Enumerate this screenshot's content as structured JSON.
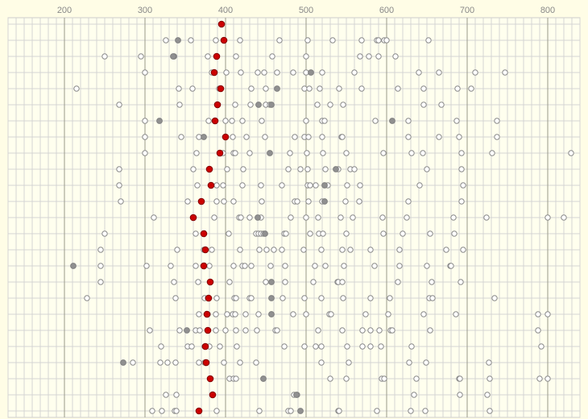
{
  "chart_data": {
    "type": "dotplot",
    "xlim": [
      130,
      840
    ],
    "xticks": [
      200,
      300,
      400,
      500,
      600,
      700,
      800
    ],
    "grid": true,
    "categories": [
      null,
      null,
      null,
      null,
      null,
      null,
      null,
      null,
      null,
      null,
      null,
      null,
      null,
      null,
      null,
      null,
      null,
      null,
      null,
      null,
      null,
      null,
      null,
      null,
      null
    ],
    "series": [
      {
        "color": "#cc0000",
        "values": [
          395,
          398,
          389,
          386,
          394,
          390,
          387,
          400,
          393,
          380,
          382,
          370,
          360,
          373,
          375,
          373,
          381,
          379,
          377,
          378,
          375,
          376,
          381,
          384,
          367
        ]
      },
      {
        "color": "#ffffff",
        "values": [
          [],
          [
            326,
            357,
            388,
            418,
            467,
            502,
            533,
            569,
            588,
            590,
            597,
            600,
            652
          ],
          [
            250,
            295,
            378,
            413,
            458,
            500,
            567,
            578,
            590,
            611
          ],
          [
            300,
            383,
            401,
            419,
            440,
            448,
            464,
            484,
            500,
            520,
            560,
            640,
            665,
            710,
            747
          ],
          [
            215,
            342,
            359,
            392,
            432,
            450,
            498,
            504,
            517,
            541,
            569,
            614,
            646,
            688,
            705
          ],
          [
            268,
            343,
            390,
            412,
            431,
            450,
            455,
            514,
            530,
            546,
            646,
            668
          ],
          [
            300,
            379,
            400,
            408,
            421,
            445,
            500,
            520,
            523,
            586,
            627,
            687,
            737
          ],
          [
            300,
            345,
            367,
            409,
            426,
            449,
            486,
            498,
            503,
            520,
            544,
            545,
            627,
            665,
            690,
            737
          ],
          [
            300,
            364,
            397,
            410,
            412,
            430,
            480,
            501,
            521,
            550,
            596,
            631,
            645,
            693,
            731,
            829
          ],
          [
            268,
            360,
            380,
            402,
            422,
            478,
            493,
            502,
            524,
            540,
            555,
            560,
            650,
            693
          ],
          [
            268,
            365,
            389,
            397,
            421,
            444,
            470,
            502,
            505,
            512,
            527,
            551,
            567,
            641,
            695
          ],
          [
            270,
            353,
            389,
            398,
            410,
            445,
            486,
            489,
            503,
            520,
            549,
            566,
            627,
            693
          ],
          [
            311,
            386,
            417,
            419,
            430,
            444,
            481,
            500,
            515,
            543,
            558,
            595,
            625,
            683,
            724,
            800,
            820
          ],
          [
            250,
            363,
            404,
            438,
            441,
            444,
            447,
            473,
            475,
            505,
            516,
            521,
            550,
            596,
            620,
            654,
            684
          ],
          [
            245,
            340,
            373,
            383,
            418,
            442,
            451,
            460,
            470,
            497,
            519,
            545,
            555,
            580,
            616,
            674,
            695
          ],
          [
            245,
            302,
            332,
            363,
            380,
            410,
            421,
            424,
            432,
            456,
            474,
            511,
            524,
            547,
            585,
            616,
            650,
            679,
            680
          ],
          [
            245,
            336,
            366,
            405,
            450,
            474,
            509,
            539,
            540,
            545,
            614,
            656,
            692
          ],
          [
            228,
            338,
            374,
            378,
            389,
            411,
            413,
            430,
            432,
            471,
            498,
            519,
            546,
            580,
            604,
            653,
            657,
            734
          ],
          [
            367,
            378,
            388,
            402,
            409,
            412,
            425,
            441,
            457,
            484,
            500,
            529,
            531,
            574,
            602,
            646,
            686,
            788,
            800
          ],
          [
            306,
            343,
            363,
            368,
            388,
            400,
            413,
            425,
            439,
            462,
            464,
            515,
            545,
            570,
            580,
            591,
            605,
            607,
            654,
            788
          ],
          [
            320,
            353,
            358,
            374,
            380,
            393,
            414,
            473,
            498,
            512,
            519,
            551,
            570,
            580,
            593,
            631,
            792
          ],
          [
            285,
            319,
            328,
            338,
            367,
            374,
            398,
            418,
            438,
            519,
            553,
            628,
            649,
            727
          ],
          [
            405,
            410,
            413,
            447,
            530,
            550,
            594,
            597,
            637,
            690,
            691,
            728,
            790,
            800
          ],
          [
            326,
            339,
            485,
            489,
            634,
            691,
            725
          ],
          [
            309,
            321,
            337,
            339,
            389,
            442,
            478,
            481,
            540,
            541,
            588,
            630,
            648,
            728
          ]
        ]
      },
      {
        "color": "#909090",
        "values": [
          [],
          [
            341
          ],
          [
            336,
            335
          ],
          [
            506
          ],
          [
            464
          ],
          [
            441,
            457
          ],
          [
            318,
            607
          ],
          [
            373
          ],
          [
            455
          ],
          [
            537
          ],
          [
            523
          ],
          [
            523
          ],
          [
            440
          ],
          [
            449
          ],
          [],
          [
            211
          ],
          [
            457
          ],
          [
            457
          ],
          [
            457
          ],
          [
            352
          ],
          [],
          [
            273
          ],
          [
            447
          ],
          [
            488
          ],
          [
            493
          ]
        ]
      }
    ]
  }
}
